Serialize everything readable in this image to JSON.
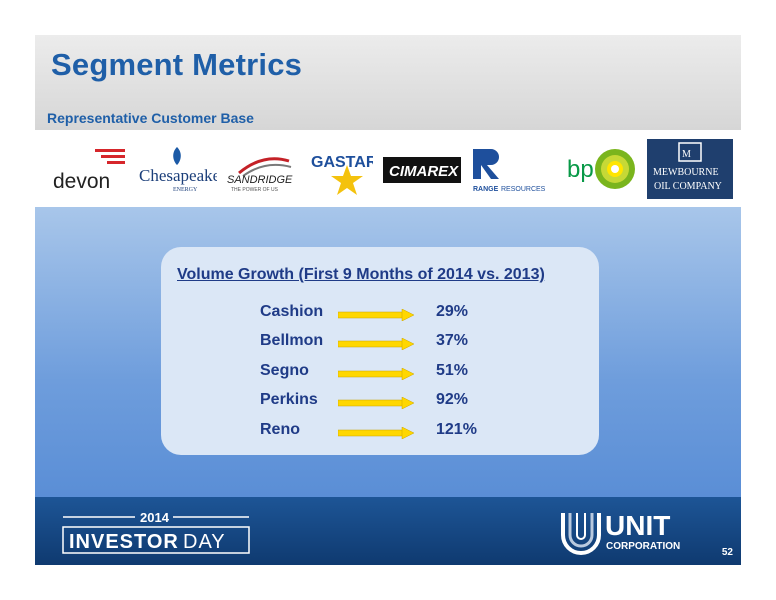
{
  "header": {
    "title": "Segment Metrics",
    "subtitle": "Representative Customer Base"
  },
  "customers": {
    "devon": "devon",
    "chesapeake": "Chesapeake",
    "chesapeake_sub": "ENERGY",
    "sandridge": "SANDRIDGE",
    "sandridge_sub": "THE POWER OF US",
    "gastar": "GASTAR",
    "cimarex": "CIMAREX",
    "range_a": "RANGE",
    "range_b": "RESOURCES",
    "bp": "bp",
    "mewbourne_a": "MEWBOURNE",
    "mewbourne_b": "OIL COMPANY"
  },
  "panel": {
    "title": "Volume Growth (First 9 Months of 2014 vs. 2013)",
    "rows": [
      {
        "name": "Cashion",
        "value": "29%"
      },
      {
        "name": "Bellmon",
        "value": "37%"
      },
      {
        "name": "Segno",
        "value": "51%"
      },
      {
        "name": "Perkins",
        "value": "92%"
      },
      {
        "name": "Reno",
        "value": "121%"
      }
    ]
  },
  "footer": {
    "year": "2014",
    "event_a": "INVESTOR",
    "event_b": "DAY",
    "company_a": "UNIT",
    "company_b": "CORPORATION",
    "page": "52"
  },
  "colors": {
    "title": "#1f5fa8",
    "panel_text": "#1f3b87",
    "arrow": "#ffd700",
    "footer": "#0f3a70"
  }
}
